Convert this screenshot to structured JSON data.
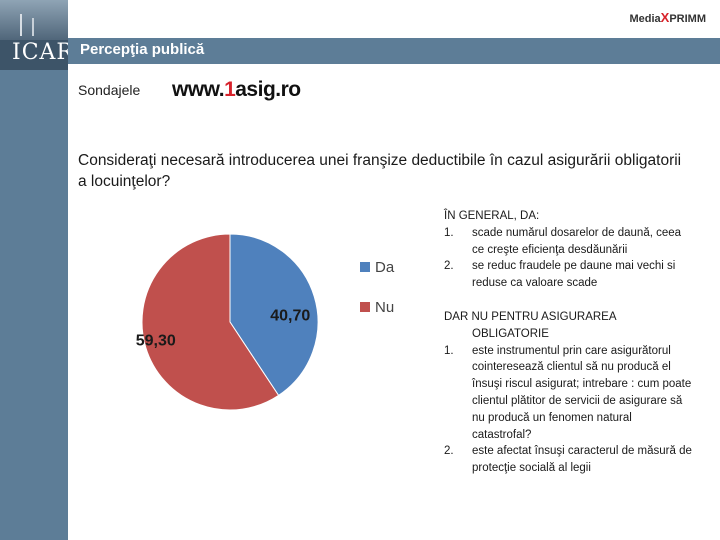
{
  "header": {
    "logo_text": "ICAR",
    "title": "Percepţia publică",
    "brand_left": "Media",
    "brand_x": "X",
    "brand_right": "PRIMM"
  },
  "source": {
    "label": "Sondajele",
    "site_prefix": "www.",
    "site_accent": "1",
    "site_rest": "asig.ro"
  },
  "question": "Consideraţi necesară introducerea unei franşize deductibile în cazul asigurării obligatorii a locuinţelor?",
  "chart_data": {
    "type": "pie",
    "categories": [
      "Da",
      "Nu"
    ],
    "values": [
      40.7,
      59.3
    ],
    "value_labels": [
      "40,70",
      "59,30"
    ],
    "colors": [
      "#4f81bd",
      "#c0504d"
    ],
    "legend_position": "right"
  },
  "notes": {
    "general_head": "ÎN GENERAL, DA:",
    "general_items": [
      {
        "num": "1.",
        "text": "scade numărul dosarelor de daună, ceea ce creşte eficienţa desdăunării"
      },
      {
        "num": "2.",
        "text": "se reduc fraudele pe daune mai vechi si reduse ca valoare scade"
      }
    ],
    "but_head_1": "DAR NU PENTRU ASIGURAREA",
    "but_head_2": "OBLIGATORIE",
    "but_items": [
      {
        "num": "1.",
        "text": "este instrumentul prin care asigurătorul cointeresează clientul să nu producă el însuşi riscul asigurat; intrebare : cum poate clientul plătitor de servicii de asigurare să nu producă un fenomen natural catastrofal?"
      },
      {
        "num": "2.",
        "text": "este afectat însuşi caracterul de măsură de protecţie socială al legii"
      }
    ]
  }
}
